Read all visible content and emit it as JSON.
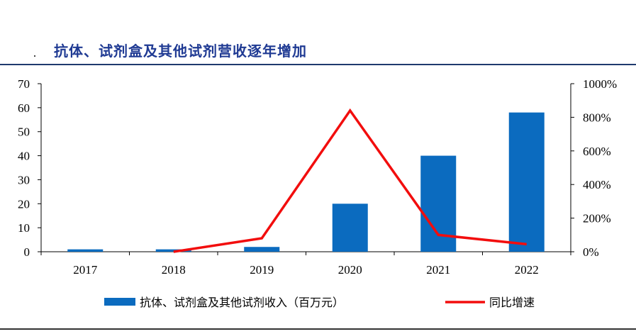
{
  "title": "抗体、试剂盒及其他试剂营收逐年增加",
  "chart_data": {
    "type": "bar",
    "categories": [
      "2017",
      "2018",
      "2019",
      "2020",
      "2021",
      "2022"
    ],
    "series": [
      {
        "name": "抗体、试剂盒及其他试剂收入（百万元）",
        "type": "bar",
        "axis": "left",
        "values": [
          1,
          1,
          2,
          20,
          40,
          58
        ]
      },
      {
        "name": "同比增速",
        "type": "line",
        "axis": "right",
        "values": [
          null,
          0,
          80,
          840,
          100,
          45
        ]
      }
    ],
    "yleft": {
      "ylim": [
        0,
        70
      ],
      "ticks": [
        "0",
        "10",
        "20",
        "30",
        "40",
        "50",
        "60",
        "70"
      ]
    },
    "yright": {
      "ylim": [
        0,
        1000
      ],
      "ticks": [
        "0%",
        "200%",
        "400%",
        "600%",
        "800%",
        "1000%"
      ]
    },
    "colors": {
      "bar": "#0b6bbf",
      "line": "#f20d0d"
    },
    "legend_placement": "bottom"
  }
}
